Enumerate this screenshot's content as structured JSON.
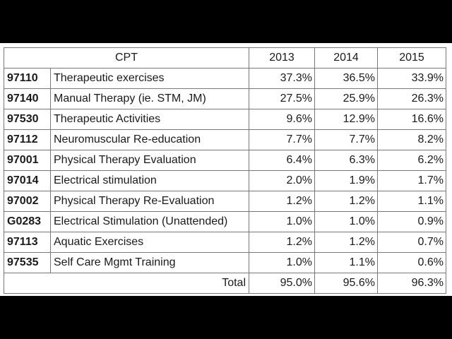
{
  "table": {
    "header": {
      "cpt": "CPT",
      "years": [
        "2013",
        "2014",
        "2015"
      ]
    },
    "rows": [
      {
        "code": "97110",
        "description": "Therapeutic exercises",
        "values": [
          "37.3%",
          "36.5%",
          "33.9%"
        ]
      },
      {
        "code": "97140",
        "description": "Manual Therapy (ie. STM, JM)",
        "values": [
          "27.5%",
          "25.9%",
          "26.3%"
        ]
      },
      {
        "code": "97530",
        "description": "Therapeutic Activities",
        "values": [
          "9.6%",
          "12.9%",
          "16.6%"
        ]
      },
      {
        "code": "97112",
        "description": "Neuromuscular Re-education",
        "values": [
          "7.7%",
          "7.7%",
          "8.2%"
        ]
      },
      {
        "code": "97001",
        "description": "Physical Therapy Evaluation",
        "values": [
          "6.4%",
          "6.3%",
          "6.2%"
        ]
      },
      {
        "code": "97014",
        "description": "Electrical stimulation",
        "values": [
          "2.0%",
          "1.9%",
          "1.7%"
        ]
      },
      {
        "code": "97002",
        "description": "Physical Therapy Re-Evaluation",
        "values": [
          "1.2%",
          "1.2%",
          "1.1%"
        ]
      },
      {
        "code": "G0283",
        "description": "Electrical Stimulation (Unattended)",
        "values": [
          "1.0%",
          "1.0%",
          "0.9%"
        ]
      },
      {
        "code": "97113",
        "description": "Aquatic Exercises",
        "values": [
          "1.2%",
          "1.2%",
          "0.7%"
        ]
      },
      {
        "code": "97535",
        "description": "Self Care Mgmt Training",
        "values": [
          "1.0%",
          "1.1%",
          "0.6%"
        ]
      }
    ],
    "total": {
      "label": "Total",
      "values": [
        "95.0%",
        "95.6%",
        "96.3%"
      ]
    }
  }
}
